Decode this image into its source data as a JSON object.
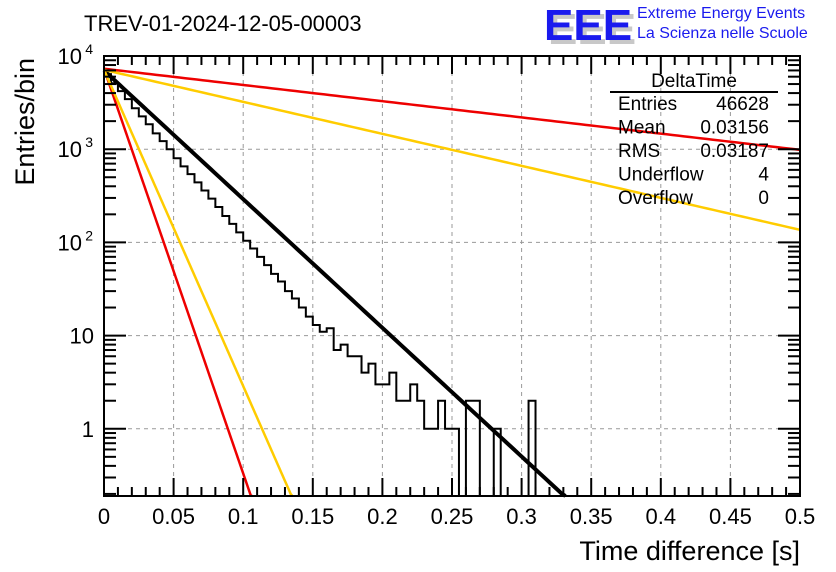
{
  "logo": {
    "mark": "EEE",
    "line1": "Extreme Energy Events",
    "line2": "La Scienza nelle Scuole",
    "color": "#1a1aee",
    "shadow_color": "#c8c8c8"
  },
  "chart_data": {
    "type": "histogram",
    "title": "TREV-01-2024-12-05-00003",
    "xlabel": "Time difference [s]",
    "ylabel": "Entries/bin",
    "xlim": [
      0,
      0.5
    ],
    "ylim": [
      0.19,
      10000
    ],
    "yscale": "log",
    "grid": true,
    "x_ticks": [
      "0",
      "0.05",
      "0.1",
      "0.15",
      "0.2",
      "0.25",
      "0.3",
      "0.35",
      "0.4",
      "0.45",
      "0.5"
    ],
    "x_tick_values": [
      0,
      0.05,
      0.1,
      0.15,
      0.2,
      0.25,
      0.3,
      0.35,
      0.4,
      0.45,
      0.5
    ],
    "y_ticks": [
      {
        "value": 10000,
        "base": "10",
        "exp": "4"
      },
      {
        "value": 1000,
        "base": "10",
        "exp": "3"
      },
      {
        "value": 100,
        "base": "10",
        "exp": "2"
      },
      {
        "value": 10,
        "base": "10",
        "exp": ""
      },
      {
        "value": 1,
        "base": "1",
        "exp": ""
      }
    ],
    "bin_width": 0.005,
    "histogram": {
      "name": "DeltaTime",
      "color": "#000000",
      "bin_start": 0,
      "values": [
        6400,
        5100,
        4200,
        3450,
        2750,
        2250,
        1850,
        1480,
        1220,
        1000,
        800,
        655,
        540,
        440,
        360,
        295,
        240,
        192,
        158,
        128,
        104,
        86,
        70,
        57,
        46,
        38,
        30,
        25,
        20,
        16,
        13,
        11,
        12,
        7,
        8,
        6,
        6,
        4,
        5,
        3,
        3,
        4,
        2,
        2,
        3,
        2,
        1,
        1,
        2,
        1,
        1,
        0,
        2,
        2,
        0,
        0,
        1,
        0,
        0,
        0,
        0,
        2
      ]
    },
    "fit_lines": [
      {
        "name": "fit",
        "color": "#000000",
        "A": 7000,
        "tau": 0.03145,
        "x_range": [
          0,
          0.34
        ]
      },
      {
        "name": "red-fast",
        "color": "#ee0000",
        "A": 7300,
        "tau": 0.01,
        "x_range": [
          0,
          0.11
        ]
      },
      {
        "name": "yellow-fast",
        "color": "#ffcc00",
        "A": 7100,
        "tau": 0.0128,
        "x_range": [
          0,
          0.14
        ]
      },
      {
        "name": "red-slow",
        "color": "#ee0000",
        "A": 7300,
        "tau": 0.2495,
        "x_range": [
          0,
          0.5
        ]
      },
      {
        "name": "yellow-slow",
        "color": "#ffcc00",
        "A": 7100,
        "tau": 0.1265,
        "x_range": [
          0,
          0.5
        ]
      }
    ],
    "stats": {
      "title": "DeltaTime",
      "rows": [
        {
          "label": "Entries",
          "value": "46628"
        },
        {
          "label": "Mean",
          "value": "0.03156"
        },
        {
          "label": "RMS",
          "value": "0.03187"
        },
        {
          "label": "Underflow",
          "value": "4"
        },
        {
          "label": "Overflow",
          "value": "0"
        }
      ]
    }
  }
}
